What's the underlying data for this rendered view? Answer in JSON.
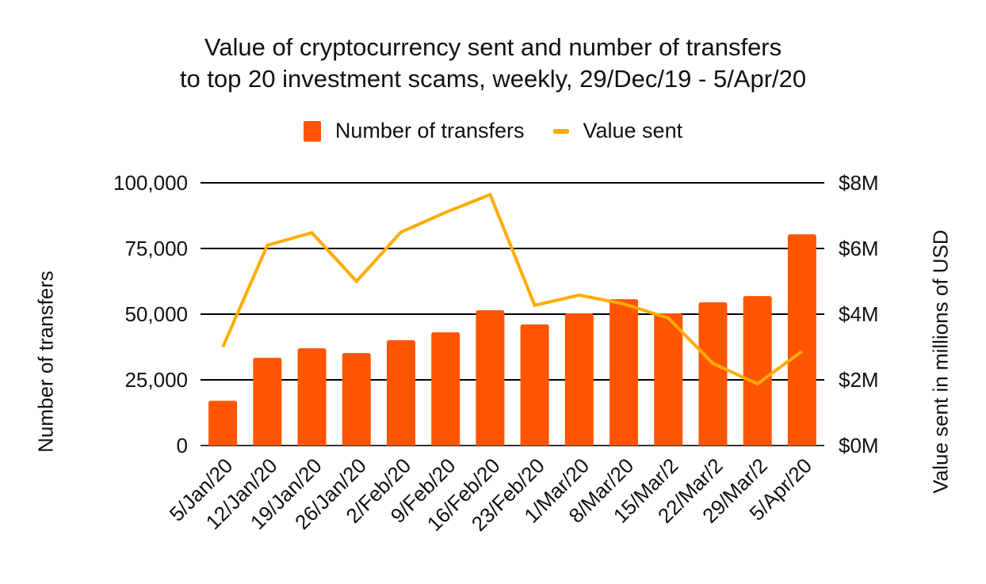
{
  "title_line1": "Value of cryptocurrency sent and number of transfers",
  "title_line2": "to top 20 investment scams, weekly, 29/Dec/19 - 5/Apr/20",
  "legend": [
    {
      "label": "Number of transfers",
      "color": "#FF5500",
      "kind": "bar"
    },
    {
      "label": "Value sent",
      "color": "#FFAB00",
      "kind": "line"
    }
  ],
  "axes": {
    "left_title": "Number of transfers",
    "right_title": "Value sent in millions of USD",
    "left_ticks": [
      "0",
      "25,000",
      "50,000",
      "75,000",
      "100,000"
    ],
    "right_ticks": [
      "$0M",
      "$2M",
      "$4M",
      "$6M",
      "$8M"
    ]
  },
  "chart_data": {
    "type": "bar",
    "title": "Value of cryptocurrency sent and number of transfers to top 20 investment scams, weekly, 29/Dec/19 - 5/Apr/20",
    "categories": [
      "5/Jan/20",
      "12/Jan/20",
      "19/Jan/20",
      "26/Jan/20",
      "2/Feb/20",
      "9/Feb/20",
      "16/Feb/20",
      "23/Feb/20",
      "1/Mar/20",
      "8/Mar/20",
      "15/Mar/2",
      "22/Mar/2",
      "29/Mar/2",
      "5/Apr/20"
    ],
    "series": [
      {
        "name": "Number of transfers",
        "type": "bar",
        "axis": "left",
        "color": "#FF5500",
        "values": [
          17000,
          33400,
          37000,
          35200,
          40100,
          43100,
          51500,
          46100,
          50300,
          55700,
          50300,
          54500,
          56900,
          80400
        ]
      },
      {
        "name": "Value sent",
        "type": "line",
        "axis": "right",
        "color": "#FFAB00",
        "values": [
          3.0,
          6.1,
          6.48,
          5.0,
          6.5,
          7.1,
          7.64,
          4.27,
          4.58,
          4.31,
          3.88,
          2.5,
          1.88,
          2.87
        ]
      }
    ],
    "xlabel": "",
    "ylabel": "Number of transfers",
    "y2label": "Value sent in millions of USD",
    "ylim": [
      0,
      100000
    ],
    "y2lim": [
      0,
      8
    ],
    "grid": true,
    "legend_position": "top"
  }
}
